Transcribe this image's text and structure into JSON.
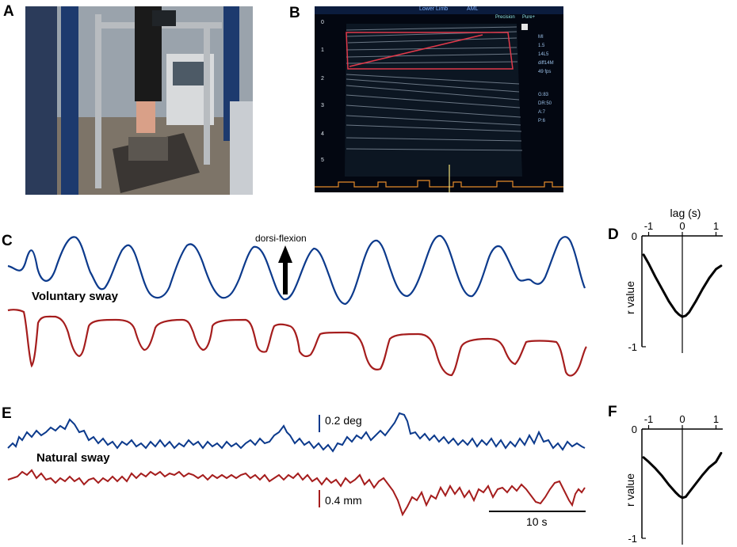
{
  "panels": {
    "a": {
      "letter": "A"
    },
    "b": {
      "letter": "B",
      "header_left": "Lower Limb",
      "header_right": "AML",
      "right_labels": [
        "Precision",
        "Pure+"
      ],
      "depth_ticks": [
        "0",
        "1",
        "2",
        "3",
        "4",
        "5"
      ],
      "side_text": [
        "MI",
        "1.5",
        "14L5",
        "diff14M",
        "49 fps",
        "G:83",
        "DR:50",
        "A:7",
        "P:6"
      ]
    },
    "c": {
      "letter": "C",
      "label": "Voluntary sway",
      "annotation": "dorsi-flexion"
    },
    "d": {
      "letter": "D"
    },
    "e": {
      "letter": "E",
      "label": "Natural sway",
      "scale_angle": "0.2 deg",
      "scale_disp": "0.4 mm",
      "scale_time": "10 s"
    },
    "f": {
      "letter": "F"
    }
  },
  "colors": {
    "blue_trace": "#0c3a8c",
    "red_trace": "#a51d1d",
    "us_bg": "#030711",
    "us_roi": "#e0394a",
    "us_ecg": "#e58a2a"
  },
  "chart_data": [
    {
      "id": "D",
      "type": "line",
      "xlabel": "lag (s)",
      "ylabel": "r value",
      "x_ticks": [
        "-1",
        "0",
        "1"
      ],
      "y_ticks": [
        "0",
        "-1"
      ],
      "xlim": [
        -1.2,
        1.2
      ],
      "ylim": [
        -1,
        0
      ],
      "x": [
        -1.15,
        -1.0,
        -0.8,
        -0.6,
        -0.4,
        -0.2,
        -0.1,
        0.0,
        0.1,
        0.2,
        0.4,
        0.6,
        0.8,
        1.0,
        1.15
      ],
      "y": [
        -0.17,
        -0.25,
        -0.37,
        -0.48,
        -0.59,
        -0.68,
        -0.71,
        -0.73,
        -0.72,
        -0.69,
        -0.59,
        -0.48,
        -0.38,
        -0.3,
        -0.27
      ]
    },
    {
      "id": "F",
      "type": "line",
      "xlabel": "",
      "ylabel": "r value",
      "x_ticks": [
        "-1",
        "0",
        "1"
      ],
      "y_ticks": [
        "0",
        "-1"
      ],
      "xlim": [
        -1.2,
        1.2
      ],
      "ylim": [
        -1,
        0
      ],
      "x": [
        -1.15,
        -1.0,
        -0.8,
        -0.6,
        -0.4,
        -0.2,
        -0.1,
        0.0,
        0.1,
        0.2,
        0.4,
        0.6,
        0.8,
        1.0,
        1.15
      ],
      "y": [
        -0.26,
        -0.3,
        -0.36,
        -0.43,
        -0.51,
        -0.58,
        -0.61,
        -0.63,
        -0.62,
        -0.58,
        -0.5,
        -0.42,
        -0.35,
        -0.3,
        -0.22
      ]
    }
  ]
}
